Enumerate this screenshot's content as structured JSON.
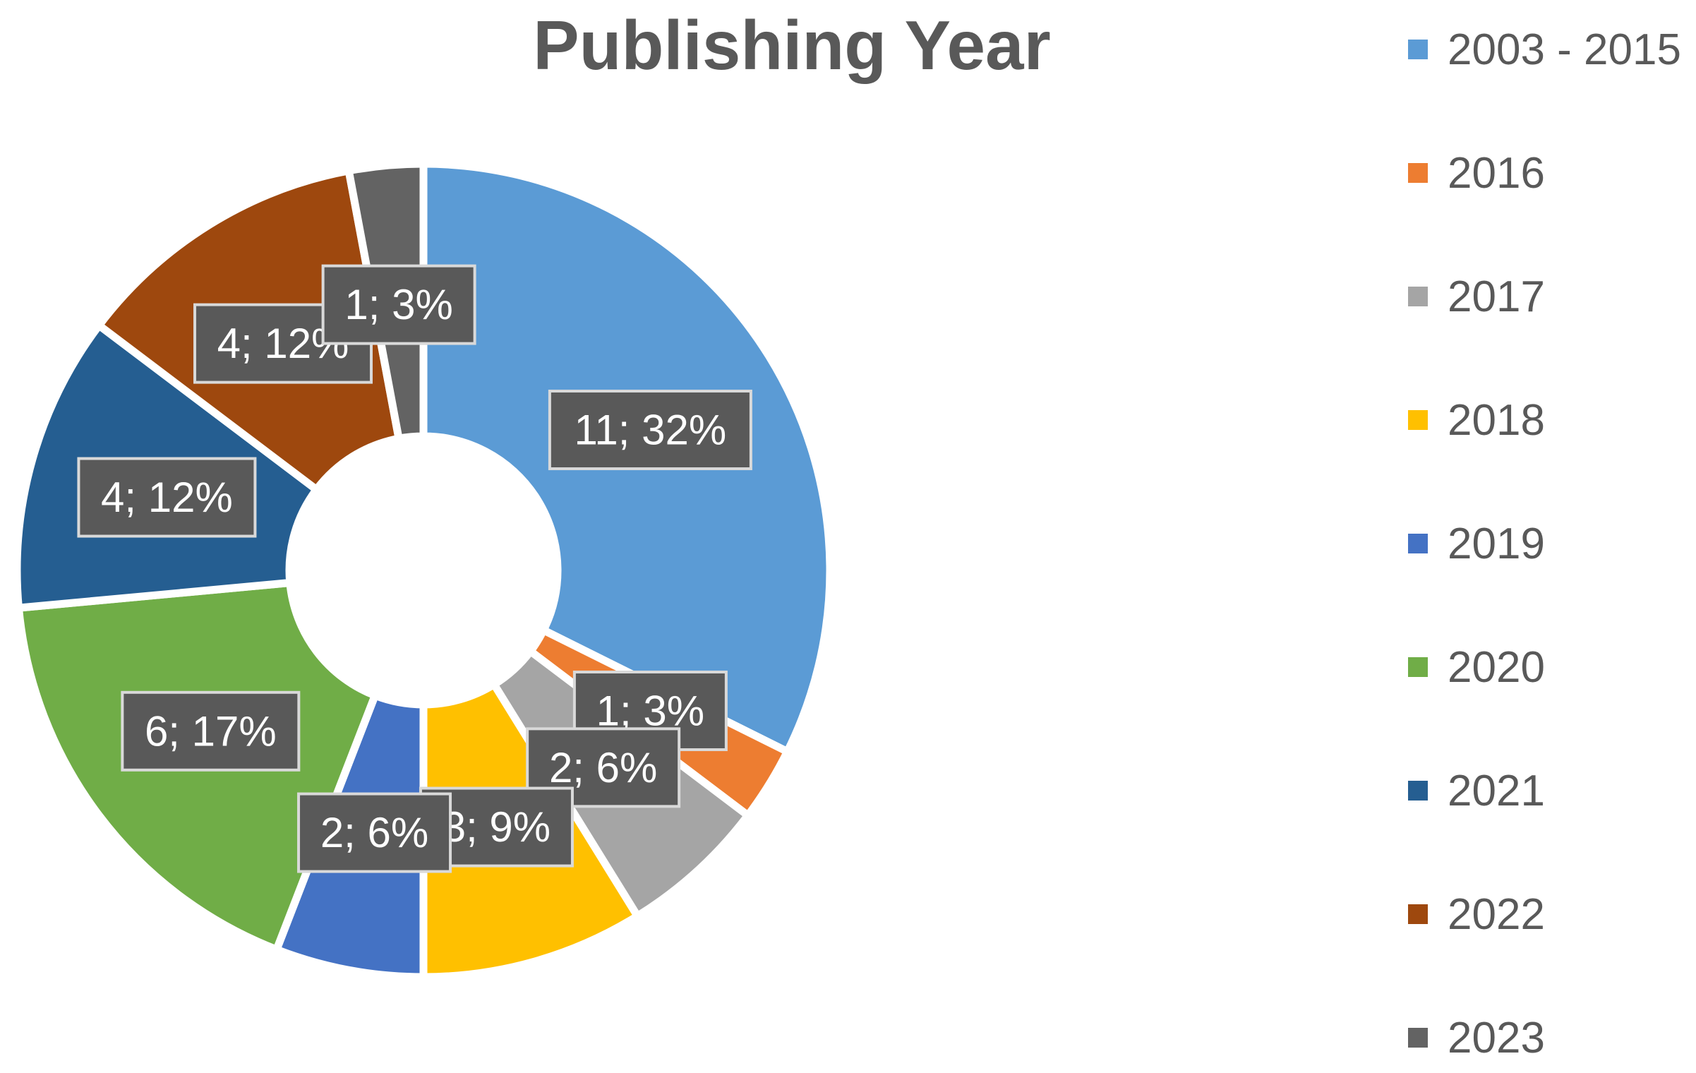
{
  "chart_data": {
    "type": "pie",
    "style": "donut",
    "title": "Publishing Year",
    "legend_position": "right",
    "categories": [
      "2003 - 2015",
      "2016",
      "2017",
      "2018",
      "2019",
      "2020",
      "2021",
      "2022",
      "2023"
    ],
    "values": [
      11,
      1,
      2,
      3,
      2,
      6,
      4,
      4,
      1
    ],
    "data_labels": [
      "11; 32%",
      "1; 3%",
      "2; 6%",
      "3; 9%",
      "2; 6%",
      "6; 17%",
      "4; 12%",
      "4; 12%",
      "1; 3%"
    ],
    "colors": [
      "#5B9BD5",
      "#ED7D31",
      "#A5A5A5",
      "#FFC000",
      "#4472C4",
      "#70AD47",
      "#255E91",
      "#9E480E",
      "#636363"
    ]
  }
}
